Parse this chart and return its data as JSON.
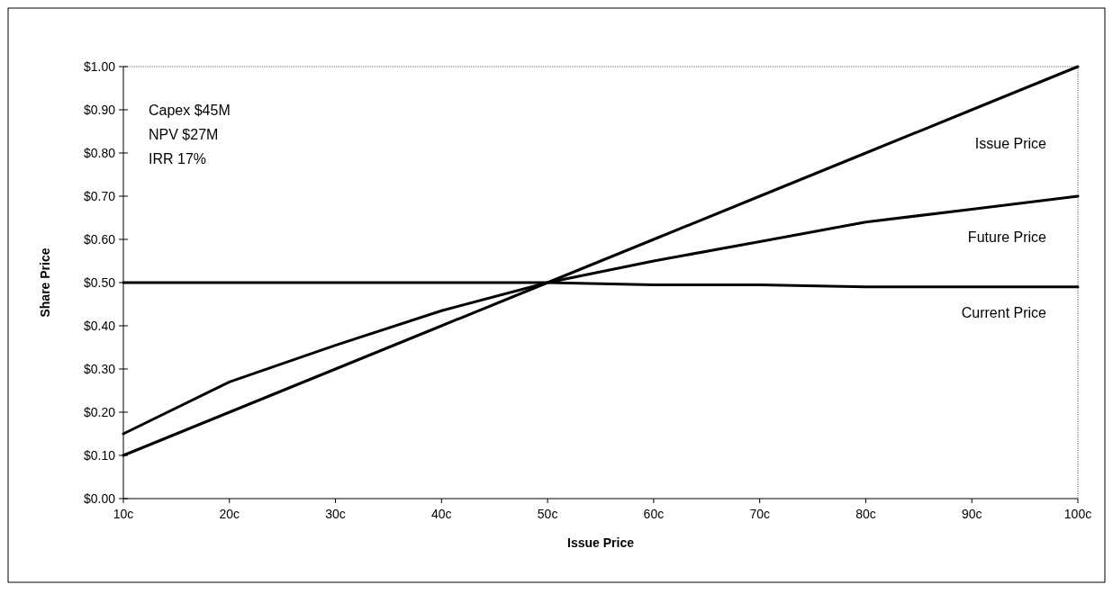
{
  "chart_data": {
    "type": "line",
    "xlabel": "Issue Price",
    "ylabel": "Share Price",
    "categories": [
      "10c",
      "20c",
      "30c",
      "40c",
      "50c",
      "60c",
      "70c",
      "80c",
      "90c",
      "100c"
    ],
    "series": [
      {
        "name": "Issue Price",
        "color": "#000000",
        "values": [
          0.1,
          0.2,
          0.3,
          0.4,
          0.5,
          0.6,
          0.7,
          0.8,
          0.9,
          1.0
        ]
      },
      {
        "name": "Future Price",
        "color": "#000000",
        "values": [
          0.15,
          0.27,
          0.355,
          0.435,
          0.5,
          0.55,
          0.595,
          0.64,
          0.67,
          0.7
        ]
      },
      {
        "name": "Current Price",
        "color": "#000000",
        "values": [
          0.5,
          0.5,
          0.5,
          0.5,
          0.5,
          0.495,
          0.495,
          0.49,
          0.49,
          0.49
        ]
      }
    ],
    "ylim": [
      0,
      1
    ],
    "yticks": [
      {
        "value": 0,
        "label": "$0.00"
      },
      {
        "value": 0.1,
        "label": "$0.10"
      },
      {
        "value": 0.2,
        "label": "$0.20"
      },
      {
        "value": 0.3,
        "label": "$0.30"
      },
      {
        "value": 0.4,
        "label": "$0.40"
      },
      {
        "value": 0.5,
        "label": "$0.50"
      },
      {
        "value": 0.6,
        "label": "$0.60"
      },
      {
        "value": 0.7,
        "label": "$0.70"
      },
      {
        "value": 0.8,
        "label": "$0.80"
      },
      {
        "value": 0.9,
        "label": "$0.90"
      },
      {
        "value": 1,
        "label": "$1.00"
      }
    ],
    "annotations": [
      "Capex $45M",
      "NPV $27M",
      "IRR 17%"
    ],
    "grid": false,
    "marker": "none",
    "line_style": "solid",
    "legend": false
  }
}
